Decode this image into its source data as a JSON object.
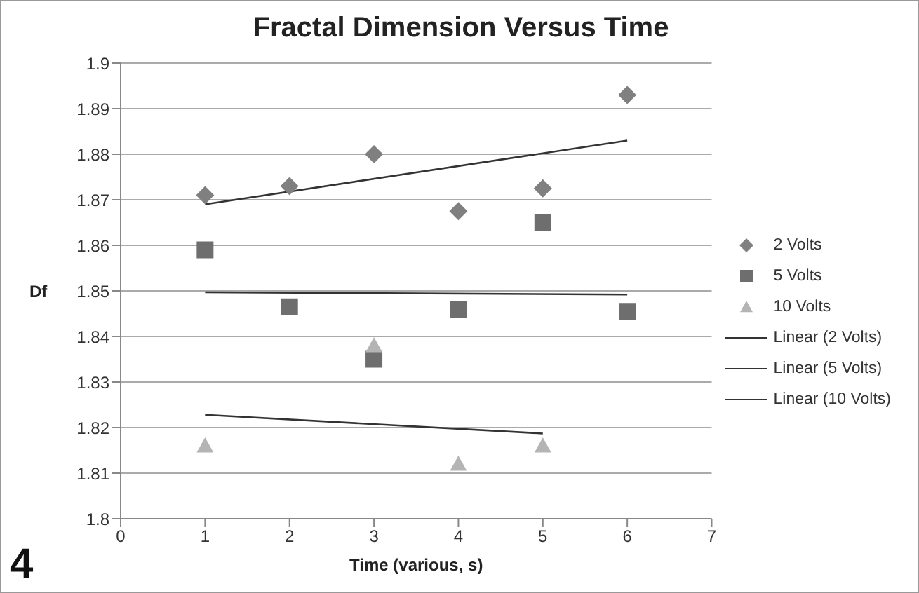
{
  "chart_data": {
    "type": "scatter",
    "title": "Fractal Dimension Versus Time",
    "xlabel": "Time (various, s)",
    "ylabel": "Df",
    "xlim": [
      0,
      7
    ],
    "xticks": [
      0,
      1,
      2,
      3,
      4,
      5,
      6,
      7
    ],
    "ylim": [
      1.8,
      1.9
    ],
    "yticks": [
      1.8,
      1.81,
      1.82,
      1.83,
      1.84,
      1.85,
      1.86,
      1.87,
      1.88,
      1.89,
      1.9
    ],
    "grid": "y",
    "legend": "right",
    "annotations": [
      "4"
    ],
    "series": [
      {
        "name": "2 Volts",
        "marker": "diamond",
        "color": "#808080",
        "x": [
          1,
          2,
          3,
          4,
          5,
          6
        ],
        "values": [
          1.871,
          1.873,
          1.88,
          1.8675,
          1.8725,
          1.893
        ]
      },
      {
        "name": "5 Volts",
        "marker": "square",
        "color": "#6e6e6e",
        "x": [
          1,
          2,
          3,
          4,
          5,
          6
        ],
        "values": [
          1.859,
          1.8465,
          1.835,
          1.846,
          1.865,
          1.8455
        ]
      },
      {
        "name": "10 Volts",
        "marker": "triangle",
        "color": "#b4b4b4",
        "x": [
          1,
          3,
          4,
          5
        ],
        "values": [
          1.816,
          1.838,
          1.812,
          1.816
        ]
      },
      {
        "name": "Linear (2 Volts)",
        "type": "line",
        "marker": "none",
        "color": "#333333",
        "x": [
          1,
          6
        ],
        "values": [
          1.869,
          1.883
        ]
      },
      {
        "name": "Linear (5 Volts)",
        "type": "line",
        "marker": "none",
        "color": "#333333",
        "x": [
          1,
          6
        ],
        "values": [
          1.8497,
          1.8492
        ]
      },
      {
        "name": "Linear (10 Volts)",
        "type": "line",
        "marker": "none",
        "color": "#333333",
        "x": [
          1,
          5
        ],
        "values": [
          1.8228,
          1.8187
        ]
      }
    ]
  }
}
